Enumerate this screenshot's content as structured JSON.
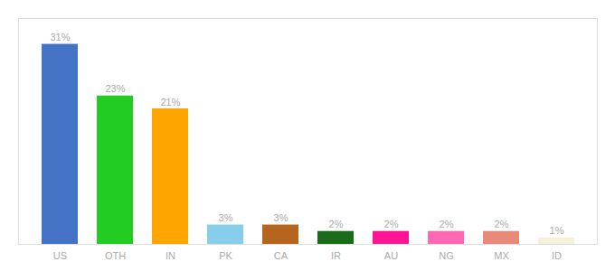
{
  "chart_data": {
    "type": "bar",
    "categories": [
      "US",
      "OTH",
      "IN",
      "PK",
      "CA",
      "IR",
      "AU",
      "NG",
      "MX",
      "ID"
    ],
    "values": [
      31,
      23,
      21,
      3,
      3,
      2,
      2,
      2,
      2,
      1
    ],
    "value_labels": [
      "31%",
      "23%",
      "21%",
      "3%",
      "3%",
      "2%",
      "2%",
      "2%",
      "2%",
      "1%"
    ],
    "colors": [
      "#4472c4",
      "#22cc22",
      "#ffa500",
      "#87ceeb",
      "#b5651d",
      "#1a6b1a",
      "#ff1493",
      "#ff69b4",
      "#e8897a",
      "#f5f0d8"
    ],
    "ylim": [
      0,
      35
    ],
    "data_labels": true,
    "tick_labels": "x"
  }
}
